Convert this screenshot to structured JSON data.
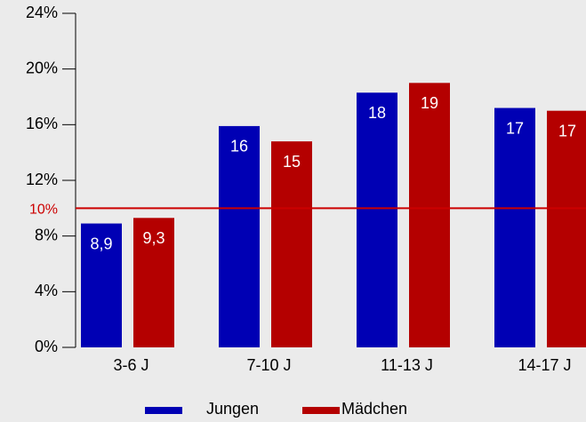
{
  "chart_data": {
    "type": "bar",
    "categories": [
      "3-6 J",
      "7-10 J",
      "11-13 J",
      "14-17 J"
    ],
    "series": [
      {
        "name": "Jungen",
        "color": "#0000b4",
        "values": [
          8.9,
          15.9,
          18.3,
          17.2
        ],
        "value_labels": [
          "8,9",
          "16",
          "18",
          "17"
        ]
      },
      {
        "name": "Mädchen",
        "color": "#b40000",
        "values": [
          9.3,
          14.8,
          19.0,
          17.0
        ],
        "value_labels": [
          "9,3",
          "15",
          "19",
          "17"
        ]
      }
    ],
    "ylim": [
      0,
      24
    ],
    "yticks": [
      {
        "value": 0,
        "label": "0%"
      },
      {
        "value": 4,
        "label": "4%"
      },
      {
        "value": 8,
        "label": "8%"
      },
      {
        "value": 12,
        "label": "12%"
      },
      {
        "value": 16,
        "label": "16%"
      },
      {
        "value": 20,
        "label": "20%"
      },
      {
        "value": 24,
        "label": "24%"
      }
    ],
    "reference_line": {
      "value": 10,
      "label": "10%",
      "color": "#cc0000"
    },
    "legend": "bottom"
  }
}
